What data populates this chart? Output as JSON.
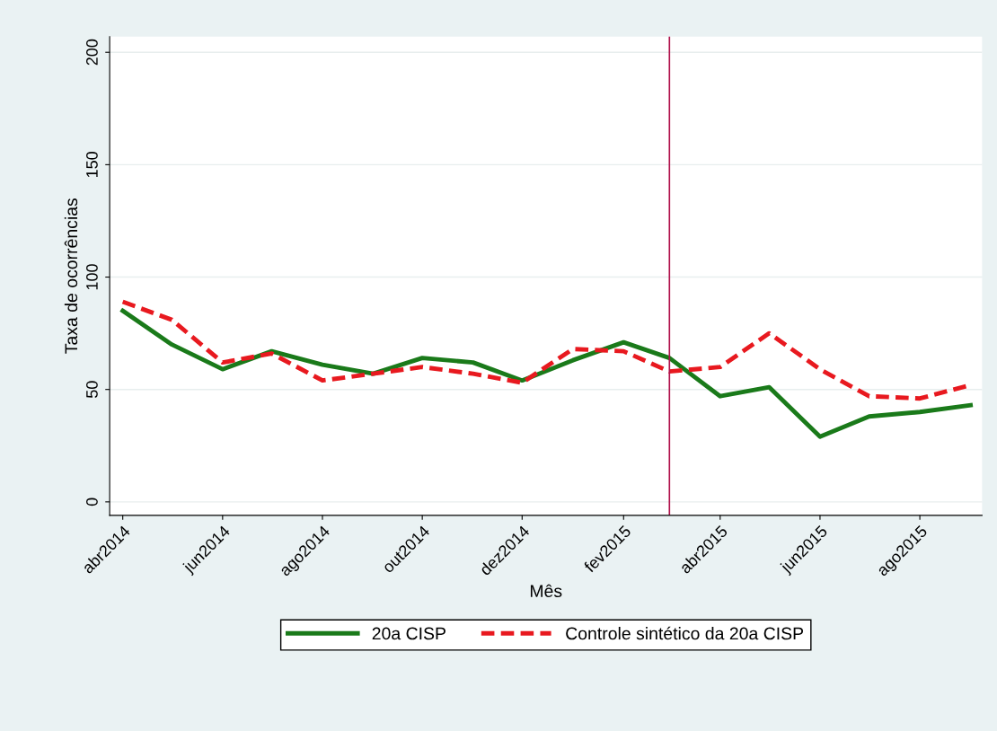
{
  "chart_data": {
    "type": "line",
    "xlabel": "Mês",
    "ylabel": "Taxa de ocorrências",
    "x": [
      "2014-04",
      "2014-05",
      "2014-06",
      "2014-07",
      "2014-08",
      "2014-09",
      "2014-10",
      "2014-11",
      "2014-12",
      "2015-01",
      "2015-02",
      "2015-03",
      "2015-04",
      "2015-05",
      "2015-06",
      "2015-07",
      "2015-08",
      "2015-09"
    ],
    "series": [
      {
        "name": "20a CISP",
        "color": "#1a7a1a",
        "line_style": "solid",
        "values": [
          85,
          70,
          59,
          67,
          61,
          57,
          64,
          62,
          54,
          63,
          71,
          64,
          47,
          51,
          29,
          38,
          40,
          43
        ]
      },
      {
        "name": "Controle sintético da 20a CISP",
        "color": "#e8191f",
        "line_style": "dashed",
        "values": [
          89,
          81,
          62,
          66,
          54,
          57,
          60,
          57,
          53,
          68,
          67,
          58,
          60,
          75,
          59,
          47,
          46,
          52
        ]
      }
    ],
    "xlim": [
      "2014-03-24",
      "2015-09-08"
    ],
    "xticks": [
      {
        "value": "2014-04",
        "label": "abr2014"
      },
      {
        "value": "2014-06",
        "label": "jun2014"
      },
      {
        "value": "2014-08",
        "label": "ago2014"
      },
      {
        "value": "2014-10",
        "label": "out2014"
      },
      {
        "value": "2014-12",
        "label": "dez2014"
      },
      {
        "value": "2015-02",
        "label": "fev2015"
      },
      {
        "value": "2015-04",
        "label": "abr2015"
      },
      {
        "value": "2015-06",
        "label": "jun2015"
      },
      {
        "value": "2015-08",
        "label": "ago2015"
      }
    ],
    "ylim": [
      -6,
      207
    ],
    "yticks": [
      0,
      50,
      100,
      150,
      200
    ],
    "ref_lines": [
      {
        "axis": "x",
        "value": "2015-03",
        "color": "#b0104a"
      }
    ],
    "grid": "y",
    "legend": "bottom",
    "marker": "none"
  }
}
